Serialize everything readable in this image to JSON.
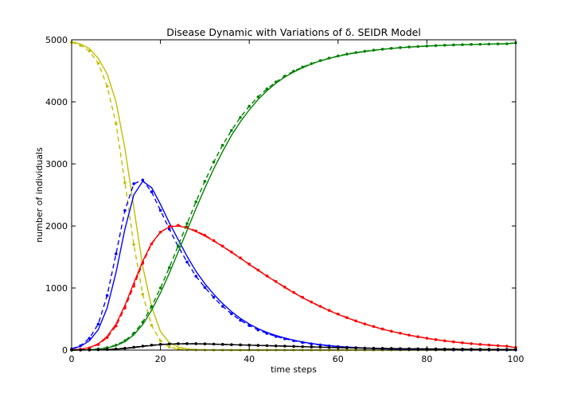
{
  "chart_data": {
    "type": "line",
    "title": "Disease Dynamic with Variations of δ. SEIDR Model",
    "xlabel": "time steps",
    "ylabel": "number of individuals",
    "xlim": [
      0,
      100
    ],
    "ylim": [
      0,
      5000
    ],
    "x_ticks": [
      "0",
      "20",
      "40",
      "60",
      "80",
      "100"
    ],
    "y_ticks": [
      "0",
      "1000",
      "2000",
      "3000",
      "4000",
      "5000"
    ],
    "grid": false,
    "legend": "none",
    "x": [
      0,
      2,
      4,
      6,
      8,
      10,
      12,
      14,
      16,
      18,
      20,
      22,
      24,
      26,
      28,
      30,
      32,
      34,
      36,
      38,
      40,
      42,
      44,
      46,
      48,
      50,
      52,
      54,
      56,
      58,
      60,
      62,
      64,
      66,
      68,
      70,
      72,
      74,
      76,
      78,
      80,
      82,
      84,
      86,
      88,
      90,
      92,
      94,
      96,
      98,
      100
    ],
    "series": [
      {
        "style": "solid",
        "color": "#bfbf00",
        "values": [
          4970,
          4930,
          4860,
          4700,
          4450,
          4000,
          3250,
          2300,
          1350,
          700,
          300,
          120,
          50,
          20,
          8,
          3,
          1,
          0,
          0,
          0,
          0,
          0,
          0,
          0,
          0,
          0,
          0,
          0,
          0,
          0,
          0,
          0,
          0,
          0,
          0,
          0,
          0,
          0,
          0,
          0,
          0,
          0,
          0,
          0,
          0,
          0,
          0,
          0,
          0,
          0,
          0
        ]
      },
      {
        "style": "dashed",
        "color": "#bfbf00",
        "values": [
          4960,
          4910,
          4820,
          4620,
          4250,
          3650,
          2700,
          1700,
          900,
          400,
          150,
          50,
          15,
          5,
          2,
          1,
          0,
          0,
          0,
          0,
          0,
          0,
          0,
          0,
          0,
          0,
          0,
          0,
          0,
          0,
          0,
          0,
          0,
          0,
          0,
          0,
          0,
          0,
          0,
          0,
          0,
          0,
          0,
          0,
          0,
          0,
          0,
          0,
          0,
          0,
          0
        ]
      },
      {
        "style": "solid",
        "color": "#0000ff",
        "values": [
          20,
          60,
          150,
          330,
          680,
          1250,
          1950,
          2500,
          2720,
          2620,
          2350,
          2050,
          1780,
          1510,
          1270,
          1070,
          900,
          750,
          620,
          510,
          420,
          345,
          285,
          235,
          195,
          160,
          130,
          107,
          88,
          72,
          59,
          48,
          40,
          33,
          27,
          22,
          18,
          15,
          12,
          10,
          8,
          7,
          5,
          4,
          4,
          3,
          2,
          2,
          2,
          1,
          1
        ]
      },
      {
        "style": "dashed",
        "color": "#0000ff",
        "values": [
          20,
          70,
          190,
          420,
          880,
          1550,
          2250,
          2680,
          2740,
          2550,
          2250,
          1950,
          1670,
          1420,
          1190,
          1010,
          850,
          705,
          585,
          480,
          395,
          325,
          268,
          220,
          182,
          150,
          122,
          100,
          82,
          67,
          55,
          45,
          37,
          30,
          25,
          20,
          17,
          14,
          11,
          9,
          7,
          6,
          5,
          4,
          3,
          3,
          2,
          2,
          1,
          1,
          1
        ]
      },
      {
        "style": "solid",
        "color": "#ff0000",
        "values": [
          5,
          15,
          40,
          100,
          220,
          420,
          720,
          1080,
          1430,
          1720,
          1900,
          1985,
          2000,
          1970,
          1910,
          1840,
          1760,
          1670,
          1575,
          1480,
          1380,
          1285,
          1190,
          1100,
          1010,
          925,
          845,
          770,
          700,
          635,
          575,
          520,
          468,
          420,
          378,
          338,
          302,
          270,
          240,
          214,
          190,
          168,
          149,
          132,
          117,
          103,
          91,
          80,
          71,
          62,
          40
        ]
      },
      {
        "style": "dashed",
        "color": "#ff0000",
        "values": [
          5,
          12,
          35,
          90,
          200,
          390,
          680,
          1030,
          1400,
          1710,
          1900,
          1990,
          2010,
          1980,
          1920,
          1850,
          1765,
          1675,
          1580,
          1485,
          1385,
          1290,
          1195,
          1105,
          1015,
          930,
          850,
          775,
          705,
          640,
          580,
          523,
          470,
          422,
          380,
          340,
          304,
          272,
          242,
          215,
          191,
          169,
          150,
          133,
          118,
          104,
          92,
          81,
          72,
          63,
          42
        ]
      },
      {
        "style": "solid",
        "color": "#008000",
        "values": [
          0,
          2,
          6,
          15,
          35,
          70,
          135,
          245,
          410,
          640,
          920,
          1240,
          1580,
          1930,
          2280,
          2610,
          2920,
          3200,
          3460,
          3680,
          3870,
          4040,
          4180,
          4300,
          4400,
          4480,
          4550,
          4610,
          4660,
          4700,
          4735,
          4765,
          4790,
          4810,
          4830,
          4845,
          4860,
          4872,
          4882,
          4890,
          4898,
          4905,
          4911,
          4916,
          4920,
          4924,
          4927,
          4930,
          4933,
          4935,
          4950
        ]
      },
      {
        "style": "dashed",
        "color": "#008000",
        "values": [
          0,
          2,
          7,
          18,
          40,
          80,
          150,
          270,
          450,
          700,
          1000,
          1330,
          1680,
          2040,
          2390,
          2720,
          3030,
          3300,
          3540,
          3750,
          3930,
          4080,
          4210,
          4320,
          4415,
          4495,
          4560,
          4615,
          4665,
          4705,
          4740,
          4770,
          4795,
          4815,
          4833,
          4848,
          4862,
          4874,
          4884,
          4892,
          4900,
          4906,
          4912,
          4917,
          4921,
          4925,
          4928,
          4931,
          4934,
          4936,
          4952
        ]
      },
      {
        "style": "solid",
        "color": "#000000",
        "values": [
          0,
          1,
          2,
          4,
          8,
          15,
          25,
          40,
          58,
          75,
          88,
          96,
          100,
          101,
          100,
          98,
          95,
          91,
          87,
          83,
          79,
          75,
          71,
          67,
          63,
          59,
          55,
          51,
          47,
          43,
          40,
          37,
          34,
          31,
          29,
          27,
          25,
          23,
          21,
          20,
          18,
          17,
          16,
          15,
          14,
          13,
          12,
          11,
          10,
          10,
          9
        ]
      },
      {
        "style": "dashed",
        "color": "#000000",
        "values": [
          0,
          1,
          2,
          5,
          10,
          18,
          30,
          46,
          64,
          80,
          92,
          99,
          103,
          104,
          103,
          100,
          96,
          92,
          88,
          84,
          80,
          76,
          72,
          68,
          64,
          60,
          56,
          52,
          48,
          44,
          41,
          38,
          35,
          32,
          30,
          28,
          26,
          24,
          22,
          20,
          19,
          18,
          17,
          16,
          15,
          14,
          13,
          12,
          11,
          10,
          10
        ]
      }
    ]
  }
}
